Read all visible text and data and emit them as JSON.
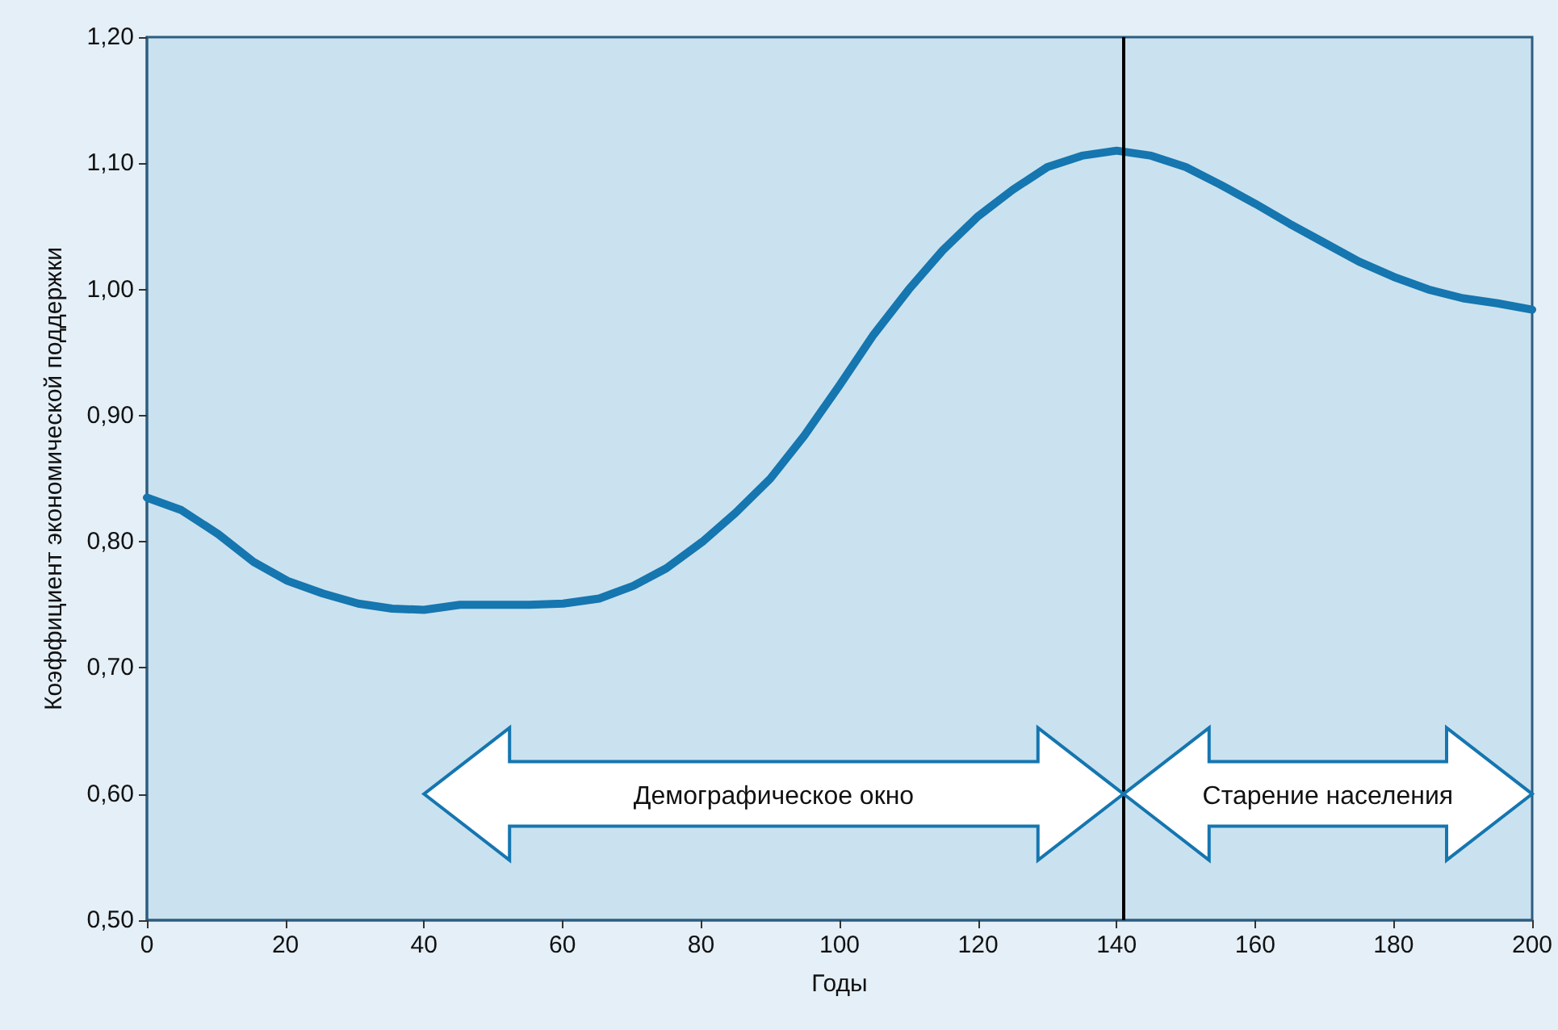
{
  "chart_data": {
    "type": "line",
    "xlabel": "Годы",
    "ylabel": "Коэффициент экономической поддержки",
    "x": [
      0,
      5,
      10.3,
      15.4,
      20.3,
      25.4,
      30.5,
      35.4,
      40,
      45.2,
      50.3,
      55.2,
      60.1,
      65.3,
      70.2,
      75,
      80.2,
      85,
      90,
      94.9,
      100,
      104.9,
      110,
      114.9,
      120,
      125,
      130,
      135,
      140,
      145,
      150,
      155,
      160,
      165,
      170,
      175,
      180,
      185,
      190,
      195,
      200
    ],
    "series": [
      {
        "color": "#1576b0",
        "values": [
          0.835,
          0.825,
          0.806,
          0.784,
          0.769,
          0.759,
          0.751,
          0.747,
          0.746,
          0.75,
          0.75,
          0.75,
          0.751,
          0.755,
          0.765,
          0.779,
          0.8,
          0.823,
          0.85,
          0.884,
          0.924,
          0.964,
          1.0,
          1.031,
          1.058,
          1.079,
          1.097,
          1.106,
          1.11,
          1.106,
          1.097,
          1.083,
          1.068,
          1.052,
          1.037,
          1.022,
          1.01,
          1.0,
          0.993,
          0.989,
          0.984
        ]
      }
    ],
    "xlim": [
      0,
      200
    ],
    "xticks": [
      0,
      20,
      40,
      60,
      80,
      100,
      120,
      140,
      160,
      180,
      200
    ],
    "ylim": [
      0.5,
      1.2
    ],
    "yticks": [
      {
        "value": 0.5,
        "label": "0,50"
      },
      {
        "value": 0.6,
        "label": "0,60"
      },
      {
        "value": 0.7,
        "label": "0,70"
      },
      {
        "value": 0.8,
        "label": "0,80"
      },
      {
        "value": 0.9,
        "label": "0,90"
      },
      {
        "value": 1.0,
        "label": "1,00"
      },
      {
        "value": 1.1,
        "label": "1,10"
      },
      {
        "value": 1.2,
        "label": "1,20"
      }
    ],
    "ref_lines": [
      {
        "axis": "x",
        "value": 141,
        "color": "#000000"
      }
    ],
    "annotations": [
      "Демографическое окно",
      "Старение населения"
    ],
    "grid": false,
    "marker": "none",
    "line_style": "solid"
  }
}
